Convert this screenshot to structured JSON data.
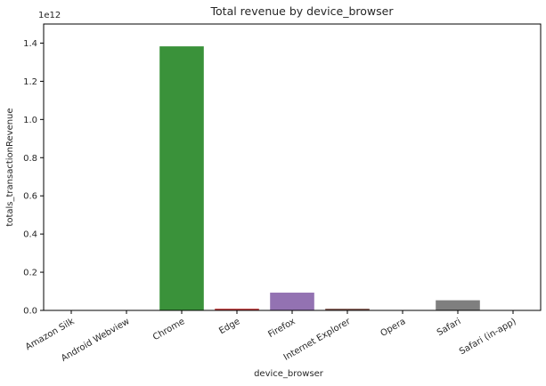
{
  "chart_data": {
    "type": "bar",
    "title": "Total revenue by device_browser",
    "xlabel": "device_browser",
    "ylabel": "totals_transactionRevenue",
    "scale_label": "1e12",
    "categories": [
      "Amazon Silk",
      "Android Webview",
      "Chrome",
      "Edge",
      "Firefox",
      "Internet Explorer",
      "Opera",
      "Safari",
      "Safari (in-app)"
    ],
    "values": [
      0.0,
      0.0,
      1.383,
      0.009,
      0.093,
      0.009,
      0.002,
      0.053,
      0.0
    ],
    "value_units_multiplier": 1000000000000.0,
    "ylim": [
      0,
      1.5
    ],
    "yticks": [
      0.0,
      0.2,
      0.4,
      0.6,
      0.8,
      1.0,
      1.2,
      1.4
    ],
    "ytick_labels": [
      "0.0",
      "0.2",
      "0.4",
      "0.6",
      "0.8",
      "1.0",
      "1.2",
      "1.4"
    ],
    "colors": [
      "#3274a1",
      "#e1812c",
      "#3a923a",
      "#c03d3e",
      "#9372b2",
      "#845b53",
      "#d684bd",
      "#7f7f7f",
      "#a9aa35"
    ],
    "grid": false,
    "legend": "none",
    "xtick_rotation": 30
  }
}
